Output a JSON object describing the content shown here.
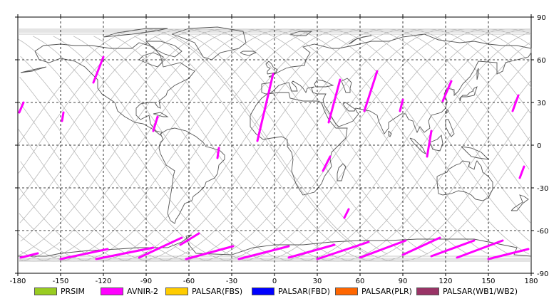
{
  "chart_data": {
    "type": "map",
    "title": "",
    "xlim": [
      -180,
      180
    ],
    "ylim": [
      -90,
      90
    ],
    "x_ticks": [
      -180,
      -150,
      -120,
      -90,
      -60,
      -30,
      0,
      30,
      60,
      90,
      120,
      150,
      180
    ],
    "y_ticks": [
      90,
      60,
      30,
      0,
      -30,
      -60,
      -90
    ],
    "x_tick_labels": [
      "-180",
      "-150",
      "-120",
      "-90",
      "-60",
      "-30",
      "0",
      "30",
      "60",
      "90",
      "120",
      "150",
      "180"
    ],
    "y_tick_labels": [
      "90",
      "60",
      "30",
      "0",
      "-30",
      "-60",
      "-90"
    ],
    "grid": true,
    "colors": {
      "coastline": "#555555",
      "orbit": "#b9b9b9",
      "grid": "#000000",
      "border": "#000000"
    },
    "legend": [
      {
        "name": "PRSIM",
        "color": "#99cc22"
      },
      {
        "name": "AVNIR-2",
        "color": "#ff00ff"
      },
      {
        "name": "PALSAR(FBS)",
        "color": "#ffcc00"
      },
      {
        "name": "PALSAR(FBD)",
        "color": "#0000ff"
      },
      {
        "name": "PALSAR(PLR)",
        "color": "#ff6600"
      },
      {
        "name": "PALSAR(WB1/WB2)",
        "color": "#993366"
      }
    ],
    "series": [
      {
        "name": "AVNIR-2",
        "color": "#ff00ff",
        "segments": [
          [
            [
              -120,
              62
            ],
            [
              -127,
              44
            ]
          ],
          [
            [
              -176,
              30
            ],
            [
              -179,
              23
            ]
          ],
          [
            [
              -148,
              23
            ],
            [
              -149,
              17
            ]
          ],
          [
            [
              -82,
              20
            ],
            [
              -85,
              10
            ]
          ],
          [
            [
              -39,
              -2
            ],
            [
              -40,
              -9
            ]
          ],
          [
            [
              -1,
              50
            ],
            [
              -12,
              3
            ]
          ],
          [
            [
              46,
              46
            ],
            [
              38,
              16
            ]
          ],
          [
            [
              72,
              52
            ],
            [
              63,
              24
            ]
          ],
          [
            [
              90,
              32
            ],
            [
              88,
              24
            ]
          ],
          [
            [
              110,
              10
            ],
            [
              107,
              -8
            ]
          ],
          [
            [
              124,
              45
            ],
            [
              118,
              31
            ]
          ],
          [
            [
              171,
              35
            ],
            [
              167,
              24
            ]
          ],
          [
            [
              39,
              -8
            ],
            [
              34,
              -18
            ]
          ],
          [
            [
              175,
              -15
            ],
            [
              172,
              -23
            ]
          ],
          [
            [
              52,
              -45
            ],
            [
              49,
              -51
            ]
          ],
          [
            [
              -53,
              -62
            ],
            [
              -66,
              -70
            ]
          ],
          [
            [
              -117,
              -73
            ],
            [
              -150,
              -80
            ]
          ],
          [
            [
              -85,
              -72
            ],
            [
              -125,
              -80
            ]
          ],
          [
            [
              -65,
              -65
            ],
            [
              -95,
              -79
            ]
          ],
          [
            [
              -29,
              -71
            ],
            [
              -62,
              -80
            ]
          ],
          [
            [
              -166,
              -76
            ],
            [
              -178,
              -79
            ]
          ],
          [
            [
              10,
              -71
            ],
            [
              -25,
              -80
            ]
          ],
          [
            [
              42,
              -70
            ],
            [
              10,
              -79
            ]
          ],
          [
            [
              66,
              -68
            ],
            [
              30,
              -80
            ]
          ],
          [
            [
              92,
              -67
            ],
            [
              60,
              -79
            ]
          ],
          [
            [
              116,
              -65
            ],
            [
              90,
              -77
            ]
          ],
          [
            [
              140,
              -67
            ],
            [
              110,
              -78
            ]
          ],
          [
            [
              160,
              -67
            ],
            [
              128,
              -79
            ]
          ],
          [
            [
              178,
              -73
            ],
            [
              150,
              -80
            ]
          ]
        ]
      }
    ]
  },
  "legend_labels": [
    "PRSIM",
    "AVNIR-2",
    "PALSAR(FBS)",
    "PALSAR(FBD)",
    "PALSAR(PLR)",
    "PALSAR(WB1/WB2)"
  ]
}
